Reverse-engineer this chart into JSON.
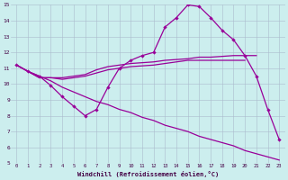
{
  "xlabel": "Windchill (Refroidissement éolien,°C)",
  "background_color": "#cceeee",
  "grid_color": "#aabbcc",
  "line_color": "#990099",
  "x_hours": [
    0,
    1,
    2,
    3,
    4,
    5,
    6,
    7,
    8,
    9,
    10,
    11,
    12,
    13,
    14,
    15,
    16,
    17,
    18,
    19,
    20,
    21,
    22,
    23
  ],
  "series1_main": [
    11.2,
    10.8,
    10.5,
    9.9,
    9.2,
    8.6,
    8.0,
    8.4,
    9.8,
    11.0,
    11.5,
    11.8,
    12.0,
    13.6,
    14.2,
    15.0,
    14.9,
    14.2,
    13.4,
    12.8,
    11.8,
    10.5,
    8.4,
    6.5
  ],
  "series2_top": [
    11.2,
    10.8,
    10.4,
    10.4,
    null,
    null,
    null,
    null,
    null,
    null,
    null,
    null,
    11.4,
    11.5,
    null,
    null,
    11.7,
    null,
    null,
    11.8,
    11.8,
    null,
    null,
    null
  ],
  "series2_full": [
    11.2,
    10.8,
    10.4,
    10.4,
    10.4,
    10.5,
    10.6,
    10.9,
    11.1,
    11.2,
    11.3,
    11.35,
    11.4,
    11.5,
    11.55,
    11.6,
    11.7,
    11.7,
    11.75,
    11.8,
    11.8,
    11.8,
    null,
    null
  ],
  "series3_mid": [
    11.2,
    10.8,
    10.4,
    10.4,
    10.3,
    10.4,
    10.5,
    10.7,
    10.9,
    11.0,
    11.1,
    11.15,
    11.2,
    11.3,
    11.4,
    11.5,
    11.5,
    11.5,
    11.5,
    11.5,
    11.5,
    null,
    null,
    null
  ],
  "series4_diag": [
    11.2,
    10.8,
    10.5,
    10.2,
    9.8,
    9.5,
    9.2,
    8.9,
    8.7,
    8.4,
    8.2,
    7.9,
    7.7,
    7.4,
    7.2,
    7.0,
    6.7,
    6.5,
    6.3,
    6.1,
    5.8,
    5.6,
    null,
    5.2
  ],
  "ylim": [
    5,
    15
  ],
  "xlim": [
    -0.5,
    23.5
  ],
  "yticks": [
    5,
    6,
    7,
    8,
    9,
    10,
    11,
    12,
    13,
    14,
    15
  ],
  "xticks": [
    0,
    1,
    2,
    3,
    4,
    5,
    6,
    7,
    8,
    9,
    10,
    11,
    12,
    13,
    14,
    15,
    16,
    17,
    18,
    19,
    20,
    21,
    22,
    23
  ]
}
